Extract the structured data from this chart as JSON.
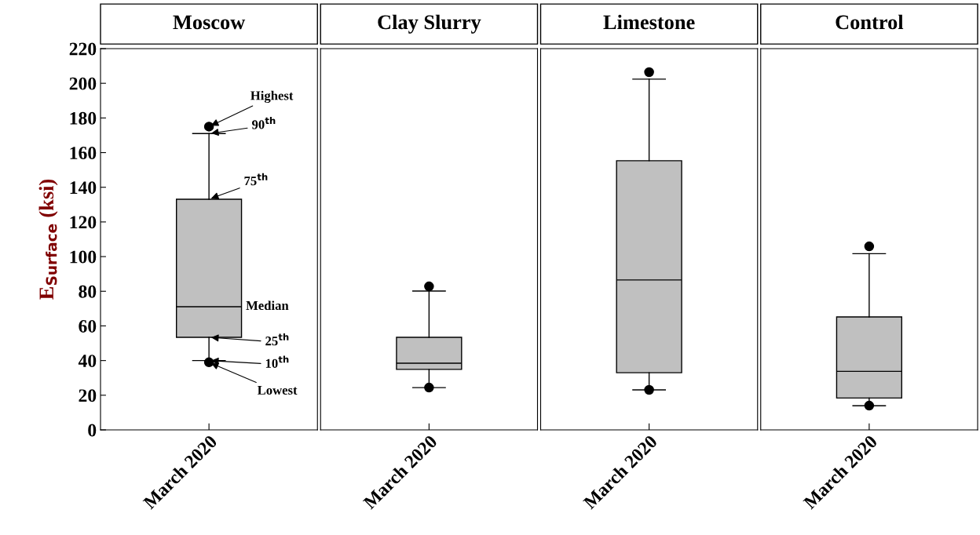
{
  "chart_data": [
    {
      "type": "box",
      "title": "Moscow",
      "ylabel": "E$_{Surface}$ (ksi)",
      "categories": [
        "March 2020"
      ],
      "ylim": [
        0,
        220
      ],
      "yticks": [
        0,
        20,
        40,
        60,
        80,
        100,
        120,
        140,
        160,
        180,
        200,
        220
      ],
      "color": "#c0c0c0",
      "boxes": [
        {
          "low": 40,
          "q1": 53.4,
          "median": 71.1,
          "q3": 133.1,
          "high": 171,
          "outliers": [
            39,
            175
          ]
        }
      ],
      "annotations": [
        "Highest",
        {
          "text": "90$^{th}$",
          "x": "March 2020",
          "y": 171
        },
        "75$^{th}$",
        "Median",
        "25$^{th}$",
        "10$^{th}$",
        {
          "text": "Lowest",
          "x": "March 2020",
          "y": 39
        }
      ]
    },
    {
      "type": "box",
      "title": "Clay Slurry",
      "categories": [
        "March 2020"
      ],
      "ylim": [
        0,
        220
      ],
      "yticks": [
        0,
        20,
        40,
        60,
        80,
        100,
        120,
        140,
        160,
        180,
        200,
        220
      ],
      "tick_labels": "x",
      "color": "#c0c0c0",
      "boxes": [
        {
          "low": 24.4,
          "q1": 34.9,
          "median": 38.5,
          "q3": 53.4,
          "high": 80.1,
          "outliers": [
            24.4,
            82.8
          ]
        }
      ]
    },
    {
      "type": "box",
      "title": "Limestone",
      "categories": [
        "March 2020"
      ],
      "ylim": [
        0,
        220
      ],
      "yticks": [
        0,
        20,
        40,
        60,
        80,
        100,
        120,
        140,
        160,
        180,
        200,
        220
      ],
      "tick_labels": "x",
      "color": "#c0c0c0",
      "boxes": [
        {
          "low": 23.1,
          "q1": 33,
          "median": 86.5,
          "q3": 155.3,
          "high": 202.4,
          "outliers": [
            23.1,
            206.4
          ]
        }
      ]
    },
    {
      "type": "box",
      "title": "Control",
      "categories": [
        "March 2020"
      ],
      "ylim": [
        0,
        220
      ],
      "yticks": [
        0,
        20,
        40,
        60,
        80,
        100,
        120,
        140,
        160,
        180,
        200,
        220
      ],
      "tick_labels": "x",
      "color": "#c0c0c0",
      "boxes": [
        {
          "low": 13.9,
          "q1": 18.4,
          "median": 33.8,
          "q3": 65.2,
          "high": 101.7,
          "outliers": [
            14,
            105.9
          ]
        }
      ]
    }
  ]
}
